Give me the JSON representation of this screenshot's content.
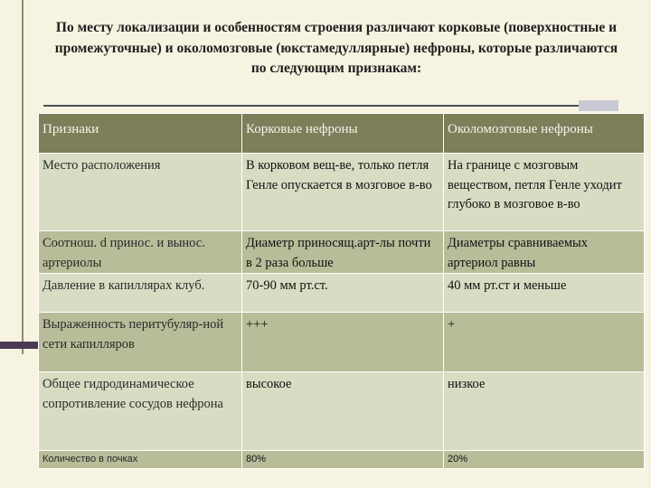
{
  "title": "По месту локализации и особенностям строения различают корковые (поверхностные и промежуточные) и околомозговые (юкстамедуллярные) нефроны, которые различаются по следующим признакам:",
  "table": {
    "headers": [
      "Признаки",
      "Корковые нефроны",
      "Околомозговые нефроны"
    ],
    "rows": [
      [
        "Место расположения",
        "В корковом вещ-ве, только петля Генле опускается в мозговое в-во",
        "На границе с мозговым веществом, петля Генле уходит глубоко в мозговое в-во"
      ],
      [
        "Соотнош. d принос. и вынос. артериолы",
        "Диаметр приносящ.арт-лы почти в 2 раза больше",
        "Диаметры сравниваемых артериол равны"
      ],
      [
        "Давление в капиллярах клуб.",
        "70-90 мм рт.ст.",
        "40 мм рт.ст и меньше"
      ],
      [
        "Выраженность перитубуляр-ной сети капилляров",
        "+++",
        "+"
      ],
      [
        "Общее гидродинамическое сопротивление сосудов нефрона",
        "высокое",
        "низкое"
      ],
      [
        "Количество в почках",
        "80%",
        "20%"
      ]
    ]
  }
}
